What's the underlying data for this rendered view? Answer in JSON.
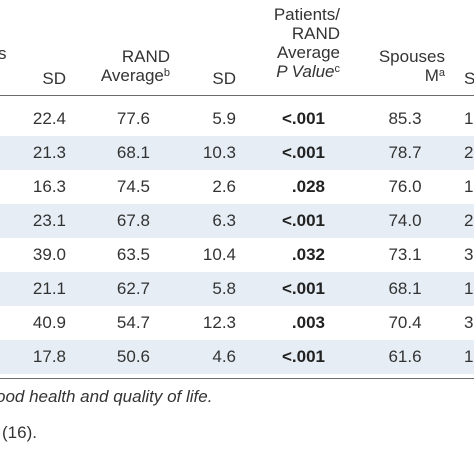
{
  "header": {
    "clipped_left": "s",
    "sd1": "SD",
    "rand_line1": "RAND",
    "rand_line2": "Average",
    "rand_sup": "b",
    "sd2": "SD",
    "pv_line1": "Patients/",
    "pv_line2": "RAND",
    "pv_line3": "Average",
    "pv_line4": "P Value",
    "pv_sup": "c",
    "sp_line1": "Spouses",
    "sp_line2": "M",
    "sp_sup": "a",
    "clipped_right": "S"
  },
  "rows": [
    {
      "sd1": "22.4",
      "rand": "77.6",
      "sd2": "5.9",
      "pval": "<.001",
      "spouses": "85.3",
      "edge": "1"
    },
    {
      "sd1": "21.3",
      "rand": "68.1",
      "sd2": "10.3",
      "pval": "<.001",
      "spouses": "78.7",
      "edge": "2"
    },
    {
      "sd1": "16.3",
      "rand": "74.5",
      "sd2": "2.6",
      "pval": ".028",
      "spouses": "76.0",
      "edge": "1"
    },
    {
      "sd1": "23.1",
      "rand": "67.8",
      "sd2": "6.3",
      "pval": "<.001",
      "spouses": "74.0",
      "edge": "2"
    },
    {
      "sd1": "39.0",
      "rand": "63.5",
      "sd2": "10.4",
      "pval": ".032",
      "spouses": "73.1",
      "edge": "3"
    },
    {
      "sd1": "21.1",
      "rand": "62.7",
      "sd2": "5.8",
      "pval": "<.001",
      "spouses": "68.1",
      "edge": "1"
    },
    {
      "sd1": "40.9",
      "rand": "54.7",
      "sd2": "12.3",
      "pval": ".003",
      "spouses": "70.4",
      "edge": "3"
    },
    {
      "sd1": "17.8",
      "rand": "50.6",
      "sd2": "4.6",
      "pval": "<.001",
      "spouses": "61.6",
      "edge": "1"
    }
  ],
  "footnotes": {
    "line1": "ood health and quality of life.",
    "line2": "(16)."
  }
}
